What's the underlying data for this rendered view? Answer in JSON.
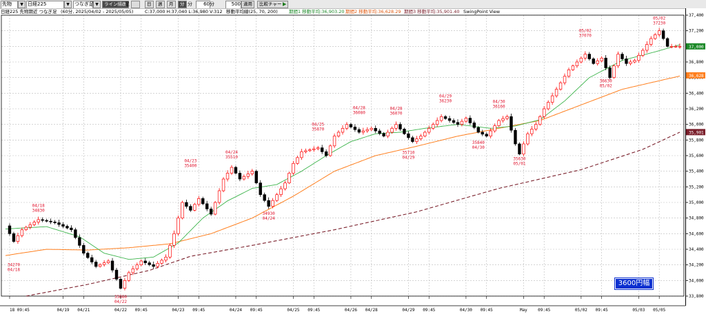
{
  "toolbar": {
    "market": "先物",
    "index": "日経225",
    "contract": "つなぎ足",
    "chart_type_button": "ライン描画",
    "mode_label": "足",
    "period_tabs": [
      "日",
      "週",
      "月",
      "分"
    ],
    "minutes_value": "60",
    "minutes_unit": "分",
    "bars_value": "500",
    "bars_unit": "本数",
    "apply_button": "適用",
    "compare_button": "比較チャート"
  },
  "info": {
    "symbol": "日経225 先物期近 つなぎ足",
    "detail": "(60分, 2025/04/02 - 2025/05/05)",
    "ohlc": "C:37,000 H:37,040 L:36,980 V:312",
    "ma_label": "移動平均線(25, 70, 200)",
    "ma_25": "期間1 移動平均:36,903.20",
    "ma_70": "期間2 移動平均:36,628.29",
    "ma_200": "期間3 移動平均:35,901.40",
    "swing": "SwingPoint View"
  },
  "badge": "3600円幅",
  "colors": {
    "up": "#ff0000",
    "down": "#000000",
    "ma25": "#3cb44b",
    "ma70": "#ff7f1e",
    "ma200": "#7a1f2b",
    "annotation": "#e0102a",
    "grid": "#bbbbbb",
    "badge_bg": "#0a2fd0"
  },
  "chart_data": {
    "type": "line",
    "title": "日経225 先物期近 つなぎ足 (60分, 2025/04/02 - 2025/05/05)",
    "xlabel": "",
    "ylabel": "",
    "ylim": [
      33800,
      37400
    ],
    "yticks": [
      33800,
      34000,
      34200,
      34400,
      34600,
      34800,
      35000,
      35200,
      35400,
      35600,
      35800,
      36000,
      36200,
      36400,
      36600,
      36800,
      37000,
      37200,
      37400
    ],
    "x_range": [
      0,
      164
    ],
    "x_ticks": [
      {
        "x": 1,
        "label": "18 09:45"
      },
      {
        "x": 14,
        "label": "04/19"
      },
      {
        "x": 19,
        "label": "04/21"
      },
      {
        "x": 28,
        "label": "04/22"
      },
      {
        "x": 33,
        "label": "09:45"
      },
      {
        "x": 42,
        "label": "04/23"
      },
      {
        "x": 47,
        "label": "09:45"
      },
      {
        "x": 56,
        "label": "04/24"
      },
      {
        "x": 61,
        "label": "09:45"
      },
      {
        "x": 70,
        "label": "04/25"
      },
      {
        "x": 75,
        "label": "09:45"
      },
      {
        "x": 84,
        "label": "04/26"
      },
      {
        "x": 89,
        "label": "04/28"
      },
      {
        "x": 98,
        "label": "04/29"
      },
      {
        "x": 103,
        "label": "09:45"
      },
      {
        "x": 112,
        "label": "04/30"
      },
      {
        "x": 117,
        "label": "09:45"
      },
      {
        "x": 126,
        "label": "May"
      },
      {
        "x": 131,
        "label": "09:45"
      },
      {
        "x": 140,
        "label": "05/02"
      },
      {
        "x": 145,
        "label": "09:45"
      },
      {
        "x": 154,
        "label": "05/03"
      },
      {
        "x": 159,
        "label": "05/05"
      }
    ],
    "anchors": [
      [
        0,
        34700
      ],
      [
        2,
        34500
      ],
      [
        4,
        34650
      ],
      [
        8,
        34780
      ],
      [
        12,
        34740
      ],
      [
        16,
        34650
      ],
      [
        19,
        34350
      ],
      [
        22,
        34180
      ],
      [
        25,
        34250
      ],
      [
        28,
        33900
      ],
      [
        30,
        34100
      ],
      [
        33,
        34250
      ],
      [
        36,
        34180
      ],
      [
        39,
        34300
      ],
      [
        41,
        34600
      ],
      [
        43,
        35000
      ],
      [
        45,
        34900
      ],
      [
        47,
        35050
      ],
      [
        50,
        34850
      ],
      [
        53,
        35300
      ],
      [
        55,
        35450
      ],
      [
        57,
        35300
      ],
      [
        60,
        35400
      ],
      [
        62,
        35100
      ],
      [
        64,
        34950
      ],
      [
        66,
        35100
      ],
      [
        68,
        35250
      ],
      [
        70,
        35500
      ],
      [
        72,
        35650
      ],
      [
        76,
        35700
      ],
      [
        78,
        35600
      ],
      [
        80,
        35850
      ],
      [
        83,
        36000
      ],
      [
        86,
        35900
      ],
      [
        89,
        35950
      ],
      [
        92,
        35850
      ],
      [
        95,
        36000
      ],
      [
        97,
        35880
      ],
      [
        99,
        35780
      ],
      [
        101,
        35850
      ],
      [
        103,
        35950
      ],
      [
        106,
        36100
      ],
      [
        108,
        36050
      ],
      [
        110,
        36000
      ],
      [
        112,
        36080
      ],
      [
        115,
        35900
      ],
      [
        117,
        35850
      ],
      [
        120,
        36050
      ],
      [
        122,
        36100
      ],
      [
        124,
        35750
      ],
      [
        125,
        35620
      ],
      [
        127,
        35880
      ],
      [
        129,
        36000
      ],
      [
        131,
        36200
      ],
      [
        134,
        36450
      ],
      [
        137,
        36700
      ],
      [
        139,
        36800
      ],
      [
        141,
        36900
      ],
      [
        143,
        36780
      ],
      [
        145,
        36850
      ],
      [
        147,
        36600
      ],
      [
        149,
        36900
      ],
      [
        151,
        36780
      ],
      [
        153,
        36820
      ],
      [
        155,
        36950
      ],
      [
        157,
        37100
      ],
      [
        159,
        37200
      ],
      [
        161,
        37000
      ],
      [
        164,
        37000
      ]
    ],
    "series": [
      {
        "name": "期間1 移動平均",
        "last": 36903.2
      },
      {
        "name": "期間2 移動平均",
        "last": 36628.29
      },
      {
        "name": "期間3 移動平均",
        "last": 35901.4
      }
    ],
    "ma_curves": {
      "ma25": [
        [
          0,
          34660
        ],
        [
          10,
          34690
        ],
        [
          18,
          34560
        ],
        [
          24,
          34350
        ],
        [
          30,
          34270
        ],
        [
          36,
          34300
        ],
        [
          42,
          34480
        ],
        [
          48,
          34800
        ],
        [
          54,
          35020
        ],
        [
          60,
          35180
        ],
        [
          66,
          35230
        ],
        [
          72,
          35400
        ],
        [
          78,
          35600
        ],
        [
          84,
          35780
        ],
        [
          90,
          35880
        ],
        [
          96,
          35900
        ],
        [
          102,
          35950
        ],
        [
          110,
          36000
        ],
        [
          118,
          35950
        ],
        [
          124,
          35980
        ],
        [
          130,
          36060
        ],
        [
          136,
          36300
        ],
        [
          142,
          36600
        ],
        [
          150,
          36820
        ],
        [
          158,
          36930
        ],
        [
          164,
          37020
        ]
      ],
      "ma70": [
        [
          0,
          34320
        ],
        [
          10,
          34400
        ],
        [
          20,
          34390
        ],
        [
          30,
          34420
        ],
        [
          40,
          34470
        ],
        [
          50,
          34600
        ],
        [
          60,
          34800
        ],
        [
          70,
          35080
        ],
        [
          80,
          35400
        ],
        [
          90,
          35600
        ],
        [
          100,
          35720
        ],
        [
          110,
          35850
        ],
        [
          120,
          35950
        ],
        [
          130,
          36050
        ],
        [
          140,
          36250
        ],
        [
          150,
          36450
        ],
        [
          164,
          36620
        ]
      ],
      "ma200": [
        [
          5,
          33800
        ],
        [
          20,
          33950
        ],
        [
          35,
          34130
        ],
        [
          45,
          34310
        ],
        [
          60,
          34450
        ],
        [
          80,
          34650
        ],
        [
          100,
          34880
        ],
        [
          120,
          35180
        ],
        [
          140,
          35420
        ],
        [
          155,
          35680
        ],
        [
          164,
          35900
        ]
      ]
    },
    "swing_labels": [
      {
        "x": 2,
        "date": "04/18",
        "value": "34270",
        "pos": "below"
      },
      {
        "x": 8,
        "date": "04/18",
        "value": "34830",
        "pos": "above"
      },
      {
        "x": 28,
        "date": "04/22",
        "value": "33860",
        "pos": "below"
      },
      {
        "x": 45,
        "date": "04/23",
        "value": "35400",
        "pos": "above"
      },
      {
        "x": 55,
        "date": "04/24",
        "value": "35510",
        "pos": "above"
      },
      {
        "x": 64,
        "date": "04/24",
        "value": "34930",
        "pos": "below"
      },
      {
        "x": 76,
        "date": "04/25",
        "value": "35870",
        "pos": "above"
      },
      {
        "x": 86,
        "date": "04/28",
        "value": "36080",
        "pos": "above"
      },
      {
        "x": 95,
        "date": "04/28",
        "value": "36070",
        "pos": "above"
      },
      {
        "x": 98,
        "date": "04/29",
        "value": "35710",
        "pos": "below"
      },
      {
        "x": 107,
        "date": "04/29",
        "value": "36230",
        "pos": "above"
      },
      {
        "x": 115,
        "date": "04/30",
        "value": "35840",
        "pos": "below"
      },
      {
        "x": 120,
        "date": "04/30",
        "value": "36160",
        "pos": "above"
      },
      {
        "x": 125,
        "date": "05/01",
        "value": "35630",
        "pos": "below"
      },
      {
        "x": 141,
        "date": "05/02",
        "value": "37070",
        "pos": "above"
      },
      {
        "x": 146,
        "date": "05/02",
        "value": "36630",
        "pos": "below"
      },
      {
        "x": 159,
        "date": "05/02",
        "value": "37230",
        "pos": "above"
      }
    ],
    "price_tags": [
      {
        "value": 37000,
        "label": "37,000",
        "color": "#1e8a2a"
      },
      {
        "value": 36628.29,
        "label": "36,628",
        "color": "#ff7f1e"
      },
      {
        "value": 35901.4,
        "label": "35,901",
        "color": "#7a1f2b"
      }
    ],
    "grid": true
  }
}
